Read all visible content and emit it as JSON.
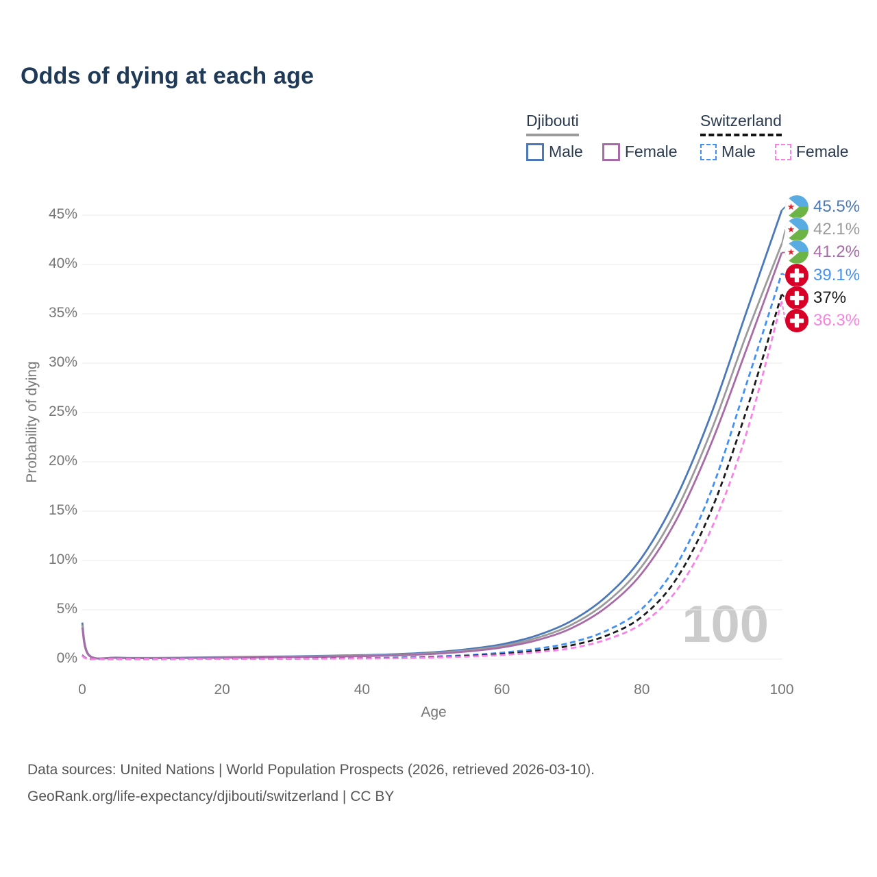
{
  "title": "Odds of dying at each age",
  "watermark": "100",
  "legend": {
    "position": "top-right",
    "groups": [
      {
        "label": "Djibouti",
        "underline": {
          "style": "solid",
          "color": "#9b9b9b"
        },
        "items": [
          {
            "label": "Male",
            "color": "#4a78b8",
            "dash": false
          },
          {
            "label": "Female",
            "color": "#a86ba8",
            "dash": false
          }
        ]
      },
      {
        "label": "Switzerland",
        "underline": {
          "style": "dashed",
          "color": "#141414"
        },
        "items": [
          {
            "label": "Male",
            "color": "#4190f4",
            "dash": true
          },
          {
            "label": "Female",
            "color": "#f980e4",
            "dash": true
          }
        ]
      }
    ]
  },
  "chart_data": {
    "type": "line",
    "title": "Odds of dying at each age",
    "xlabel": "Age",
    "ylabel": "Probability of dying",
    "x_ticks": [
      0,
      20,
      40,
      60,
      80,
      100
    ],
    "y_ticks": [
      0,
      5,
      10,
      15,
      20,
      25,
      30,
      35,
      40,
      45
    ],
    "y_tick_suffix": "%",
    "xlim": [
      0,
      100
    ],
    "ylim": [
      0,
      47
    ],
    "grid": "horizontal",
    "ages": [
      0,
      1,
      5,
      10,
      15,
      20,
      25,
      30,
      35,
      40,
      45,
      50,
      55,
      60,
      65,
      70,
      75,
      80,
      85,
      90,
      95,
      100
    ],
    "series": [
      {
        "id": "djibouti-male",
        "flag": "djibouti",
        "color": "#4a78b8",
        "dash": false,
        "end_label": "45.5%",
        "values": [
          3.7,
          0.4,
          0.15,
          0.12,
          0.15,
          0.2,
          0.24,
          0.28,
          0.33,
          0.4,
          0.5,
          0.68,
          1.0,
          1.5,
          2.4,
          3.9,
          6.4,
          10.3,
          16.5,
          25.0,
          35.3,
          45.5
        ]
      },
      {
        "id": "djibouti-both-sexes",
        "flag": "djibouti",
        "color": "#9b9b9b",
        "dash": false,
        "end_label": "42.1%",
        "values": [
          3.45,
          0.37,
          0.14,
          0.11,
          0.13,
          0.17,
          0.2,
          0.24,
          0.29,
          0.35,
          0.44,
          0.6,
          0.88,
          1.33,
          2.15,
          3.5,
          5.8,
          9.4,
          15.2,
          23.3,
          33.0,
          42.1
        ]
      },
      {
        "id": "djibouti-female",
        "flag": "djibouti",
        "color": "#a86ba8",
        "dash": false,
        "end_label": "41.2%",
        "values": [
          3.2,
          0.34,
          0.13,
          0.1,
          0.11,
          0.14,
          0.17,
          0.2,
          0.24,
          0.3,
          0.38,
          0.52,
          0.77,
          1.18,
          1.92,
          3.15,
          5.3,
          8.7,
          14.2,
          22.0,
          31.5,
          41.2
        ]
      },
      {
        "id": "switzerland-male",
        "flag": "switzerland",
        "color": "#4190f4",
        "dash": true,
        "end_label": "39.1%",
        "values": [
          0.4,
          0.03,
          0.01,
          0.01,
          0.03,
          0.06,
          0.06,
          0.07,
          0.08,
          0.1,
          0.15,
          0.25,
          0.4,
          0.65,
          1.05,
          1.7,
          2.9,
          5.1,
          9.6,
          17.2,
          28.0,
          39.1
        ]
      },
      {
        "id": "switzerland-both-sexes",
        "flag": "switzerland",
        "color": "#1a1a1a",
        "dash": true,
        "end_label": "37%",
        "values": [
          0.37,
          0.03,
          0.01,
          0.01,
          0.02,
          0.04,
          0.05,
          0.05,
          0.06,
          0.08,
          0.12,
          0.2,
          0.32,
          0.52,
          0.85,
          1.4,
          2.4,
          4.3,
          8.2,
          15.2,
          25.3,
          37.0
        ]
      },
      {
        "id": "switzerland-female",
        "flag": "switzerland",
        "color": "#f980e4",
        "dash": true,
        "end_label": "36.3%",
        "values": [
          0.33,
          0.02,
          0.01,
          0.01,
          0.02,
          0.03,
          0.03,
          0.04,
          0.05,
          0.07,
          0.1,
          0.16,
          0.26,
          0.42,
          0.7,
          1.12,
          2.0,
          3.6,
          7.0,
          13.3,
          23.0,
          36.3
        ]
      }
    ]
  },
  "flags": {
    "djibouti": {
      "blue": "#58ace2",
      "green": "#6db446",
      "triangle": "#ffffff",
      "star": "#d8222c"
    },
    "switzerland": {
      "red": "#d80027",
      "cross": "#ffffff"
    }
  },
  "footer": {
    "line1": "Data sources: United Nations | World Population Prospects (2026, retrieved 2026-03-10).",
    "line2": "GeoRank.org/life-expectancy/djibouti/switzerland | CC BY"
  }
}
